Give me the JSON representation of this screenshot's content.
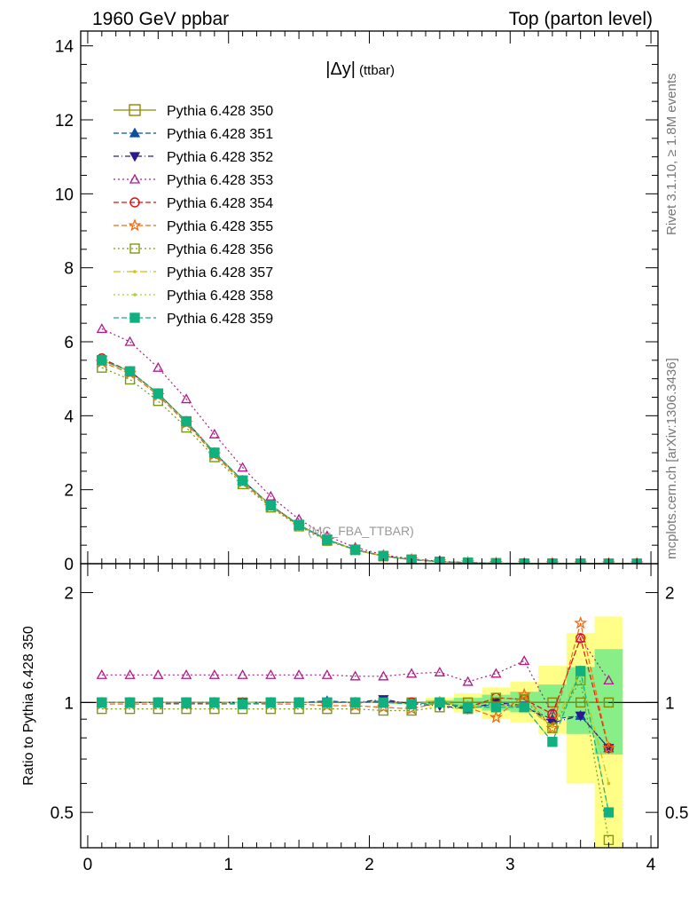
{
  "header": {
    "left": "1960 GeV ppbar",
    "right": "Top (parton level)"
  },
  "side_texts": {
    "rivet": "Rivet 3.1.10, ≥ 1.8M events",
    "mcplots": "mcplots.cern.ch [arXiv:1306.3436]"
  },
  "chart_data": [
    {
      "type": "line",
      "panel": "main",
      "title": "|Δy|",
      "title_suffix": "(ttbar)",
      "annotation": "(MC_FBA_TTBAR)",
      "xlim": [
        -0.05,
        4.05
      ],
      "ylim": [
        0,
        14.4
      ],
      "xticks": [
        0,
        1,
        2,
        3,
        4
      ],
      "yticks": [
        0,
        2,
        4,
        6,
        8,
        10,
        12,
        14
      ],
      "ytick_labels": [
        "0",
        "2",
        "4",
        "6",
        "8",
        "10",
        "12",
        "14"
      ],
      "x": [
        0.1,
        0.3,
        0.5,
        0.7,
        0.9,
        1.1,
        1.3,
        1.5,
        1.7,
        1.9,
        2.1,
        2.3,
        2.5,
        2.7,
        2.9,
        3.1,
        3.3,
        3.5,
        3.7,
        3.9
      ],
      "legend_position": "top-left",
      "series": [
        {
          "name": "Pythia 6.428 350",
          "color": "#8a8a00",
          "dash": "",
          "marker": "square-open",
          "values": [
            5.5,
            5.2,
            4.6,
            3.85,
            3.0,
            2.25,
            1.58,
            1.05,
            0.65,
            0.38,
            0.21,
            0.11,
            0.055,
            0.027,
            0.013,
            0.006,
            0.003,
            0.0013,
            0.0006,
            0.0002
          ]
        },
        {
          "name": "Pythia 6.428 351",
          "color": "#0a4fa0",
          "dash": "6,3",
          "marker": "triangle-up",
          "values": [
            5.5,
            5.2,
            4.6,
            3.85,
            3.0,
            2.25,
            1.58,
            1.05,
            0.65,
            0.38,
            0.21,
            0.11,
            0.055,
            0.027,
            0.013,
            0.006,
            0.003,
            0.0013,
            0.0006,
            0.0002
          ]
        },
        {
          "name": "Pythia 6.428 352",
          "color": "#2a1a8a",
          "dash": "6,3,1,3",
          "marker": "triangle-down",
          "values": [
            5.5,
            5.2,
            4.6,
            3.85,
            3.0,
            2.25,
            1.58,
            1.05,
            0.65,
            0.38,
            0.21,
            0.11,
            0.055,
            0.027,
            0.013,
            0.006,
            0.003,
            0.0013,
            0.0006,
            0.0002
          ]
        },
        {
          "name": "Pythia 6.428 353",
          "color": "#b01a8a",
          "dash": "2,3",
          "marker": "triangle-up-open",
          "values": [
            6.35,
            6.0,
            5.3,
            4.45,
            3.5,
            2.6,
            1.82,
            1.2,
            0.75,
            0.44,
            0.24,
            0.13,
            0.065,
            0.03,
            0.015,
            0.007,
            0.003,
            0.0015,
            0.0007,
            0.0002
          ]
        },
        {
          "name": "Pythia 6.428 354",
          "color": "#e01010",
          "dash": "6,3",
          "marker": "circle-open",
          "values": [
            5.55,
            5.2,
            4.6,
            3.85,
            3.0,
            2.25,
            1.58,
            1.05,
            0.65,
            0.38,
            0.21,
            0.11,
            0.055,
            0.027,
            0.013,
            0.006,
            0.003,
            0.0013,
            0.0006,
            0.0002
          ]
        },
        {
          "name": "Pythia 6.428 355",
          "color": "#f06a10",
          "dash": "6,3",
          "marker": "star-open",
          "values": [
            5.45,
            5.15,
            4.55,
            3.8,
            2.95,
            2.2,
            1.55,
            1.03,
            0.64,
            0.37,
            0.2,
            0.105,
            0.053,
            0.026,
            0.012,
            0.006,
            0.003,
            0.0013,
            0.0006,
            0.0002
          ]
        },
        {
          "name": "Pythia 6.428 356",
          "color": "#7a9a10",
          "dash": "2,3",
          "marker": "square-open",
          "values": [
            5.3,
            4.98,
            4.4,
            3.68,
            2.88,
            2.15,
            1.52,
            1.01,
            0.62,
            0.37,
            0.2,
            0.105,
            0.053,
            0.026,
            0.012,
            0.006,
            0.003,
            0.0013,
            0.0006,
            0.0002
          ]
        },
        {
          "name": "Pythia 6.428 357",
          "color": "#d0c010",
          "dash": "8,3,1,3",
          "marker": "dot",
          "values": [
            5.5,
            5.2,
            4.6,
            3.85,
            3.0,
            2.25,
            1.58,
            1.05,
            0.65,
            0.38,
            0.21,
            0.11,
            0.055,
            0.027,
            0.013,
            0.006,
            0.003,
            0.0013,
            0.0006,
            0.0002
          ]
        },
        {
          "name": "Pythia 6.428 358",
          "color": "#a8d030",
          "dash": "2,3",
          "marker": "dot",
          "values": [
            5.5,
            5.2,
            4.6,
            3.85,
            3.0,
            2.25,
            1.58,
            1.05,
            0.65,
            0.38,
            0.21,
            0.11,
            0.055,
            0.027,
            0.013,
            0.006,
            0.003,
            0.0013,
            0.0006,
            0.0002
          ]
        },
        {
          "name": "Pythia 6.428 359",
          "color": "#10b080",
          "dash": "6,3",
          "marker": "square",
          "values": [
            5.5,
            5.2,
            4.6,
            3.85,
            3.0,
            2.25,
            1.58,
            1.05,
            0.65,
            0.38,
            0.21,
            0.11,
            0.055,
            0.027,
            0.013,
            0.006,
            0.003,
            0.0013,
            0.0006,
            0.0002
          ]
        }
      ]
    },
    {
      "type": "line",
      "panel": "ratio",
      "ylabel": "Ratio to Pythia 6.428 350",
      "xlim": [
        -0.05,
        4.05
      ],
      "ylim": [
        0.4,
        2.4
      ],
      "ylog": true,
      "xticks": [
        0,
        1,
        2,
        3,
        4
      ],
      "xtick_labels": [
        "0",
        "1",
        "2",
        "3",
        "4"
      ],
      "yticks": [
        0.5,
        1,
        2
      ],
      "ytick_labels": [
        "0.5",
        "1",
        "2"
      ],
      "x": [
        0.1,
        0.3,
        0.5,
        0.7,
        0.9,
        1.1,
        1.3,
        1.5,
        1.7,
        1.9,
        2.1,
        2.3,
        2.5,
        2.7,
        2.9,
        3.1,
        3.3,
        3.5,
        3.7
      ],
      "band_edges": [
        2.4,
        2.6,
        2.8,
        3.0,
        3.2,
        3.4,
        3.6,
        3.8
      ],
      "band_yellow": [
        [
          0.97,
          1.03
        ],
        [
          0.94,
          1.06
        ],
        [
          0.9,
          1.1
        ],
        [
          0.88,
          1.14
        ],
        [
          0.82,
          1.26
        ],
        [
          0.6,
          1.55
        ],
        [
          0.4,
          1.72
        ]
      ],
      "band_green": [
        [
          0.985,
          1.015
        ],
        [
          0.97,
          1.03
        ],
        [
          0.95,
          1.05
        ],
        [
          0.94,
          1.07
        ],
        [
          0.91,
          1.12
        ],
        [
          0.82,
          1.25
        ],
        [
          0.72,
          1.4
        ]
      ],
      "series": [
        {
          "name": "Pythia 6.428 350",
          "values": [
            1,
            1,
            1,
            1,
            1,
            1,
            1,
            1,
            1,
            1,
            1,
            1,
            1,
            1,
            1,
            1,
            1,
            1,
            1
          ]
        },
        {
          "name": "Pythia 6.428 351",
          "values": [
            1.0,
            1.0,
            1.0,
            0.99,
            1.0,
            1.0,
            1.0,
            1.0,
            1.01,
            1.0,
            1.01,
            0.99,
            1.0,
            0.96,
            0.99,
            0.97,
            0.9,
            0.92,
            0.75
          ]
        },
        {
          "name": "Pythia 6.428 352",
          "values": [
            1.0,
            1.0,
            1.0,
            1.0,
            1.0,
            1.0,
            1.0,
            1.0,
            1.0,
            1.0,
            1.02,
            0.99,
            0.98,
            0.96,
            1.0,
            0.98,
            0.88,
            0.92,
            0.75
          ]
        },
        {
          "name": "Pythia 6.428 353",
          "values": [
            1.19,
            1.19,
            1.19,
            1.19,
            1.19,
            1.19,
            1.19,
            1.19,
            1.19,
            1.18,
            1.18,
            1.2,
            1.21,
            1.14,
            1.2,
            1.3,
            0.93,
            1.5,
            1.15
          ]
        },
        {
          "name": "Pythia 6.428 354",
          "values": [
            1.0,
            1.0,
            1.0,
            1.0,
            1.0,
            0.99,
            1.0,
            1.0,
            1.0,
            1.0,
            1.0,
            1.0,
            1.0,
            0.97,
            1.03,
            1.02,
            0.93,
            1.5,
            0.75
          ]
        },
        {
          "name": "Pythia 6.428 355",
          "values": [
            0.99,
            0.99,
            0.99,
            0.99,
            0.99,
            0.99,
            0.99,
            0.99,
            0.98,
            0.98,
            0.97,
            0.96,
            1.0,
            0.97,
            0.91,
            1.05,
            0.85,
            1.65,
            0.75
          ]
        },
        {
          "name": "Pythia 6.428 356",
          "values": [
            0.96,
            0.96,
            0.96,
            0.96,
            0.96,
            0.96,
            0.96,
            0.96,
            0.96,
            0.96,
            0.95,
            0.95,
            0.97,
            0.96,
            1.03,
            1.02,
            0.85,
            1.15,
            0.42
          ]
        },
        {
          "name": "Pythia 6.428 357",
          "values": [
            1.0,
            1.0,
            1.0,
            1.0,
            1.0,
            1.0,
            1.0,
            1.0,
            1.0,
            1.0,
            1.0,
            0.99,
            1.01,
            0.97,
            0.98,
            0.98,
            0.86,
            1.2,
            0.6
          ]
        },
        {
          "name": "Pythia 6.428 358",
          "values": [
            1.0,
            1.0,
            1.0,
            1.0,
            1.0,
            1.0,
            1.0,
            1.0,
            1.0,
            1.0,
            1.0,
            0.99,
            1.0,
            0.98,
            0.97,
            0.97,
            0.78,
            1.25,
            0.5
          ]
        },
        {
          "name": "Pythia 6.428 359",
          "values": [
            1.0,
            1.0,
            1.0,
            1.0,
            1.0,
            0.99,
            1.0,
            1.0,
            1.0,
            1.0,
            1.0,
            0.99,
            1.0,
            0.97,
            0.97,
            0.97,
            0.78,
            1.22,
            0.5
          ]
        }
      ]
    }
  ]
}
